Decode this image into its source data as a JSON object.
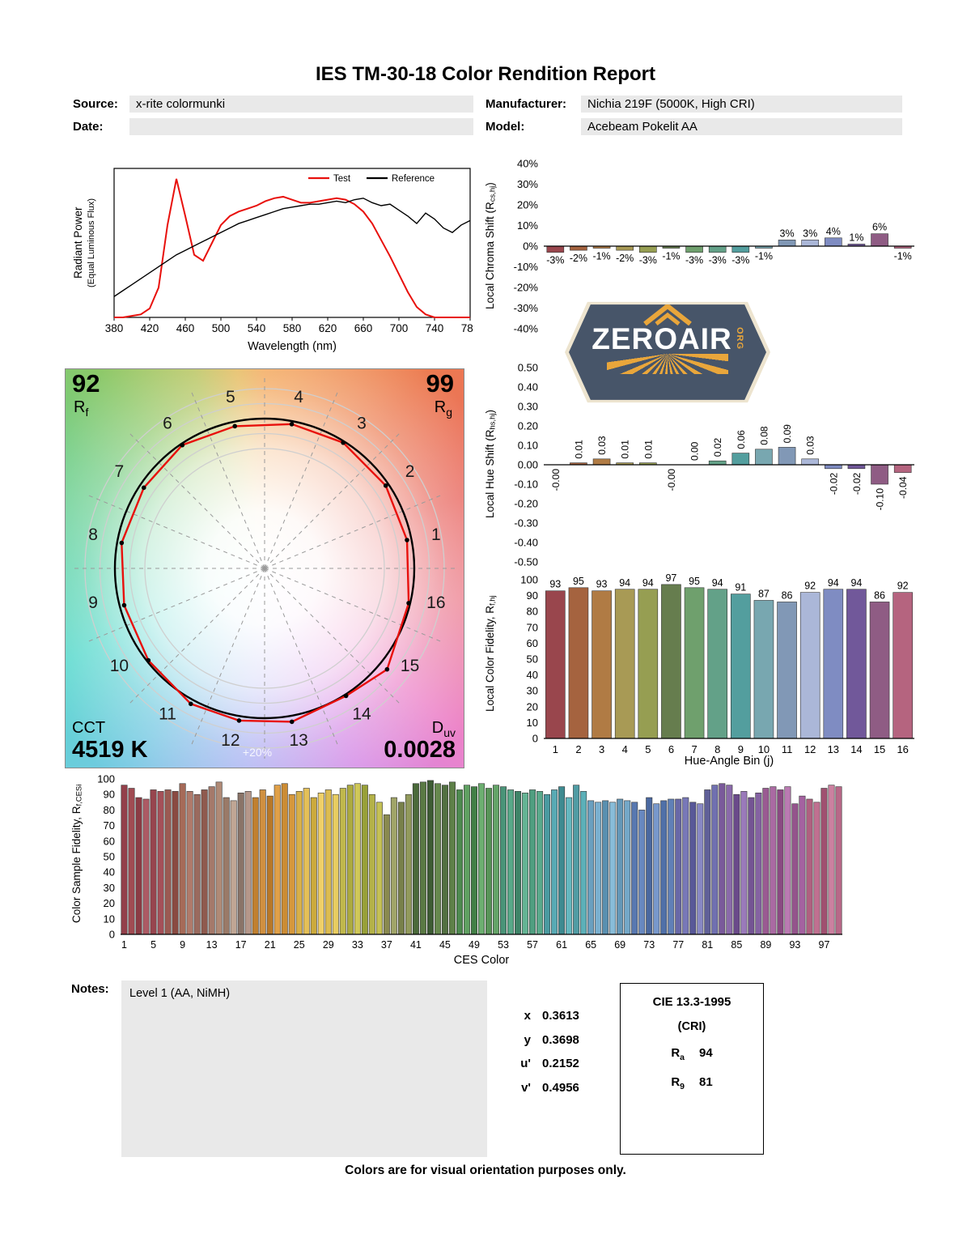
{
  "title": "IES TM-30-18 Color Rendition Report",
  "meta": {
    "source_label": "Source:",
    "source": "x-rite colormunki",
    "date_label": "Date:",
    "date": "",
    "manufacturer_label": "Manufacturer:",
    "manufacturer": "Nichia 219F (5000K, High CRI)",
    "model_label": "Model:",
    "model": "Acebeam Pokelit AA"
  },
  "logo": {
    "wordmark": "ZEROAIR",
    "tld": "ORG"
  },
  "cvg": {
    "rf": "92",
    "rf_sub": [
      "R",
      "f"
    ],
    "rg": "99",
    "rg_sub": [
      "R",
      "g"
    ],
    "cct_label": "CCT",
    "cct_value": "4519 K",
    "duv_sub": [
      "D",
      "uv"
    ],
    "duv_value": "0.0028",
    "ring_label": "+20%",
    "bin_numbers": [
      1,
      2,
      3,
      4,
      5,
      6,
      7,
      8,
      9,
      10,
      11,
      12,
      13,
      14,
      15,
      16
    ]
  },
  "palette": {
    "test_color": "#e8100c",
    "reference_color": "#000000",
    "hue_bins": [
      "#99464d",
      "#a5633f",
      "#b07b44",
      "#a89a55",
      "#969e52",
      "#667d4e",
      "#6fa06d",
      "#63a188",
      "#539e9e",
      "#78a7b0",
      "#8198b6",
      "#abb7d8",
      "#7f8cc2",
      "#71589a",
      "#8f5c84",
      "#b5647f"
    ]
  },
  "chart_data": [
    {
      "id": "spd",
      "type": "line",
      "xlabel": "Wavelength (nm)",
      "ylabel_line1": "Radiant Power",
      "ylabel_line2": "(Equal Luminous Flux)",
      "xlim": [
        380,
        780
      ],
      "ylim": [
        0,
        1
      ],
      "xticks": [
        380,
        420,
        460,
        500,
        540,
        580,
        620,
        660,
        700,
        740,
        780
      ],
      "x": [
        380,
        390,
        400,
        410,
        420,
        430,
        440,
        450,
        460,
        470,
        480,
        490,
        500,
        510,
        520,
        530,
        540,
        550,
        560,
        570,
        580,
        590,
        600,
        610,
        620,
        630,
        640,
        650,
        660,
        670,
        680,
        690,
        700,
        710,
        720,
        730,
        740,
        750,
        760,
        770,
        780
      ],
      "series": [
        {
          "name": "Test",
          "color": "#e8100c",
          "values": [
            0.0,
            0.0,
            0.01,
            0.02,
            0.06,
            0.2,
            0.62,
            0.93,
            0.68,
            0.42,
            0.38,
            0.5,
            0.62,
            0.68,
            0.71,
            0.73,
            0.75,
            0.78,
            0.8,
            0.81,
            0.79,
            0.77,
            0.77,
            0.78,
            0.79,
            0.8,
            0.79,
            0.76,
            0.71,
            0.63,
            0.52,
            0.41,
            0.29,
            0.17,
            0.07,
            0.02,
            0.0,
            0.0,
            0.0,
            0.0,
            0.0
          ]
        },
        {
          "name": "Reference",
          "color": "#000000",
          "values": [
            0.14,
            0.18,
            0.22,
            0.26,
            0.3,
            0.34,
            0.38,
            0.42,
            0.45,
            0.48,
            0.51,
            0.54,
            0.57,
            0.6,
            0.63,
            0.65,
            0.67,
            0.69,
            0.71,
            0.73,
            0.74,
            0.75,
            0.76,
            0.76,
            0.77,
            0.78,
            0.77,
            0.79,
            0.8,
            0.77,
            0.75,
            0.76,
            0.72,
            0.68,
            0.63,
            0.7,
            0.66,
            0.6,
            0.57,
            0.62,
            0.65
          ]
        }
      ]
    },
    {
      "id": "chroma_shift",
      "type": "bar",
      "ylabel_parts": [
        "Local Chroma Shift (R",
        "cs,hj",
        ")"
      ],
      "ylim": [
        -40,
        40
      ],
      "yticks": [
        "40%",
        "30%",
        "20%",
        "10%",
        "0%",
        "-10%",
        "-20%",
        "-30%",
        "-40%"
      ],
      "categories": [
        1,
        2,
        3,
        4,
        5,
        6,
        7,
        8,
        9,
        10,
        11,
        12,
        13,
        14,
        15,
        16
      ],
      "values": [
        -3,
        -2,
        -1,
        -2,
        -3,
        -1,
        -3,
        -3,
        -3,
        -1,
        3,
        3,
        4,
        1,
        6,
        -1
      ],
      "labels": [
        "-3%",
        "-2%",
        "-1%",
        "-2%",
        "-3%",
        "-1%",
        "-3%",
        "-3%",
        "-3%",
        "-1%",
        "3%",
        "3%",
        "4%",
        "1%",
        "6%",
        "-1%"
      ]
    },
    {
      "id": "hue_shift",
      "type": "bar",
      "ylabel_parts": [
        "Local Hue Shift (R",
        "hs,hj",
        ")"
      ],
      "ylim": [
        -0.5,
        0.5
      ],
      "yticks": [
        "0.50",
        "0.40",
        "0.30",
        "0.20",
        "0.10",
        "0.00",
        "-0.10",
        "-0.20",
        "-0.30",
        "-0.40",
        "-0.50"
      ],
      "categories": [
        1,
        2,
        3,
        4,
        5,
        6,
        7,
        8,
        9,
        10,
        11,
        12,
        13,
        14,
        15,
        16
      ],
      "values": [
        0,
        0.01,
        0.03,
        0.01,
        0.01,
        0,
        0,
        0.02,
        0.06,
        0.08,
        0.09,
        0.03,
        -0.02,
        -0.02,
        -0.1,
        -0.04
      ],
      "labels": [
        "-0.00",
        "0.01",
        "0.03",
        "0.01",
        "0.01",
        "-0.00",
        "0.00",
        "0.02",
        "0.06",
        "0.08",
        "0.09",
        "0.03",
        "-0.02",
        "-0.02",
        "-0.10",
        "-0.04"
      ]
    },
    {
      "id": "local_fidelity",
      "type": "bar",
      "ylabel_parts": [
        "Local Color Fidelity, R",
        "f,hj",
        ""
      ],
      "xlabel": "Hue-Angle Bin (j)",
      "ylim": [
        0,
        100
      ],
      "yticks": [
        "100",
        "90",
        "80",
        "70",
        "60",
        "50",
        "40",
        "30",
        "20",
        "10",
        "0"
      ],
      "categories": [
        1,
        2,
        3,
        4,
        5,
        6,
        7,
        8,
        9,
        10,
        11,
        12,
        13,
        14,
        15,
        16
      ],
      "values": [
        93,
        95,
        93,
        94,
        94,
        97,
        95,
        94,
        91,
        87,
        86,
        92,
        94,
        94,
        86,
        92
      ]
    },
    {
      "id": "ces_fidelity",
      "type": "bar",
      "ylabel_parts": [
        "Color Sample Fidelity, R",
        "f,CESi",
        ""
      ],
      "xlabel": "CES Color",
      "ylim": [
        0,
        100
      ],
      "yticks": [
        "100",
        "90",
        "80",
        "70",
        "60",
        "50",
        "40",
        "30",
        "20",
        "10",
        "0"
      ],
      "xticks": [
        1,
        5,
        9,
        13,
        17,
        21,
        25,
        29,
        33,
        37,
        41,
        45,
        49,
        53,
        57,
        61,
        65,
        69,
        73,
        77,
        81,
        85,
        89,
        93,
        97
      ],
      "values": [
        96,
        94,
        88,
        87,
        93,
        92,
        93,
        92,
        97,
        92,
        90,
        93,
        95,
        98,
        88,
        86,
        91,
        92,
        88,
        93,
        89,
        96,
        97,
        90,
        92,
        94,
        88,
        91,
        93,
        90,
        94,
        96,
        97,
        96,
        90,
        85,
        77,
        88,
        85,
        90,
        97,
        98,
        99,
        97,
        96,
        98,
        93,
        96,
        95,
        97,
        94,
        96,
        95,
        93,
        92,
        91,
        93,
        92,
        90,
        93,
        95,
        88,
        96,
        92,
        86,
        85,
        86,
        85,
        87,
        86,
        85,
        80,
        88,
        84,
        86,
        87,
        87,
        88,
        85,
        84,
        93,
        96,
        97,
        96,
        90,
        92,
        88,
        91,
        94,
        95,
        93,
        95,
        84,
        89,
        87,
        85,
        94,
        96,
        95
      ],
      "colors": [
        "#93404a",
        "#a14b52",
        "#8c3b44",
        "#ad5a64",
        "#97454e",
        "#a55058",
        "#9b5a52",
        "#8a4a42",
        "#a66a58",
        "#b07a6a",
        "#9a6a5e",
        "#8f5a4e",
        "#a5796a",
        "#b08a76",
        "#9a7a68",
        "#c0a694",
        "#8a7468",
        "#b5978a",
        "#c08030",
        "#d09040",
        "#b87828",
        "#e0a048",
        "#cc8c34",
        "#d6983c",
        "#d8b048",
        "#e4c058",
        "#ccaa3c",
        "#f0d068",
        "#dcbc50",
        "#e8cc60",
        "#c0b84c",
        "#acaa40",
        "#d0c858",
        "#98a038",
        "#b4b248",
        "#c4c054",
        "#8a8a50",
        "#a0a468",
        "#78804a",
        "#929a5c",
        "#4a6a3a",
        "#5a7a44",
        "#3e5c34",
        "#66884e",
        "#527042",
        "#5e8048",
        "#4e8a50",
        "#60a062",
        "#428046",
        "#6cae70",
        "#589458",
        "#64a468",
        "#4a9478",
        "#58a888",
        "#3e8468",
        "#64b494",
        "#509e80",
        "#5aaa8c",
        "#4a9aa0",
        "#58aab4",
        "#3e8a90",
        "#64b8c0",
        "#509ca4",
        "#5cb0b8",
        "#6aa0c0",
        "#7ab0d0",
        "#5a90b0",
        "#88bcd8",
        "#6498b8",
        "#74a8c8",
        "#5878b0",
        "#6888c0",
        "#4a68a0",
        "#7898cc",
        "#5070a8",
        "#6080b8",
        "#6868a8",
        "#7878b8",
        "#585898",
        "#8888c4",
        "#606098",
        "#7070b0",
        "#7a5a9a",
        "#8a6aaa",
        "#6a4a8a",
        "#9a7aba",
        "#745494",
        "#8462a2",
        "#9a5a92",
        "#aa6aa2",
        "#8a4a82",
        "#ba7ab2",
        "#94548c",
        "#a462a0",
        "#b06080",
        "#c07090",
        "#a05070",
        "#cc80a0",
        "#b86888"
      ]
    }
  ],
  "notes": {
    "label": "Notes:",
    "text": "Level 1 (AA, NiMH)"
  },
  "chromaticity": [
    {
      "label": "x",
      "value": "0.3613"
    },
    {
      "label": "y",
      "value": "0.3698"
    },
    {
      "label": "u'",
      "value": "0.2152"
    },
    {
      "label": "v'",
      "value": "0.4956"
    }
  ],
  "cie": {
    "title": "CIE 13.3-1995",
    "subtitle": "(CRI)",
    "rows": [
      {
        "sym": "R",
        "sub": "a",
        "value": "94"
      },
      {
        "sym": "R",
        "sub": "9",
        "value": "81"
      }
    ]
  },
  "footer": "Colors are for visual orientation purposes only."
}
